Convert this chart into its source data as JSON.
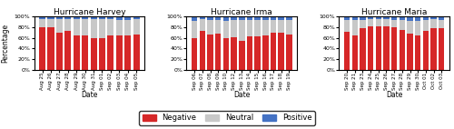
{
  "harvey": {
    "title": "Hurricane Harvey",
    "dates": [
      "Aug 25",
      "Aug 26",
      "Aug 27",
      "Aug 28",
      "Aug 29",
      "Aug 30",
      "Aug 31",
      "Sep 01",
      "Sep 02",
      "Sep 03",
      "Sep 04",
      "Sep 05"
    ],
    "negative": [
      81,
      81,
      70,
      74,
      64,
      65,
      60,
      60,
      64,
      65,
      65,
      66
    ],
    "neutral": [
      14,
      14,
      25,
      21,
      31,
      30,
      35,
      35,
      31,
      29,
      29,
      29
    ],
    "positive": [
      5,
      5,
      5,
      5,
      5,
      5,
      5,
      5,
      5,
      6,
      6,
      5
    ]
  },
  "irma": {
    "title": "Hurricane Irma",
    "dates": [
      "Sep 06",
      "Sep 07",
      "Sep 08",
      "Sep 09",
      "Sep 10",
      "Sep 12",
      "Sep 13",
      "Sep 14",
      "Sep 15",
      "Sep 16",
      "Sep 17",
      "Sep 18",
      "Sep 19"
    ],
    "negative": [
      59,
      73,
      66,
      68,
      59,
      61,
      55,
      63,
      63,
      64,
      70,
      70,
      67
    ],
    "neutral": [
      33,
      22,
      28,
      26,
      34,
      33,
      39,
      31,
      31,
      30,
      24,
      24,
      27
    ],
    "positive": [
      8,
      5,
      6,
      6,
      7,
      6,
      6,
      6,
      6,
      6,
      6,
      6,
      6
    ]
  },
  "maria": {
    "title": "Hurricane Maria",
    "dates": [
      "Sep 20",
      "Sep 21",
      "Sep 23",
      "Sep 24",
      "Sep 25",
      "Sep 26",
      "Sep 27",
      "Sep 28",
      "Sep 29",
      "Sep 30",
      "Oct 01",
      "Oct 02",
      "Oct 03"
    ],
    "negative": [
      72,
      64,
      78,
      82,
      82,
      82,
      80,
      75,
      68,
      65,
      73,
      79,
      79
    ],
    "neutral": [
      22,
      30,
      16,
      13,
      13,
      13,
      14,
      19,
      24,
      28,
      21,
      16,
      15
    ],
    "positive": [
      6,
      6,
      6,
      5,
      5,
      5,
      6,
      6,
      8,
      7,
      6,
      5,
      6
    ]
  },
  "colors": {
    "negative": "#d62728",
    "neutral": "#c8c8c8",
    "positive": "#4472c4"
  },
  "ylabel": "Percentage",
  "xlabel": "Date",
  "ylim": [
    0,
    100
  ],
  "yticks": [
    0,
    20,
    40,
    60,
    80,
    100
  ],
  "yticklabels": [
    "0%",
    "20%",
    "40%",
    "60%",
    "80%",
    "100%"
  ]
}
